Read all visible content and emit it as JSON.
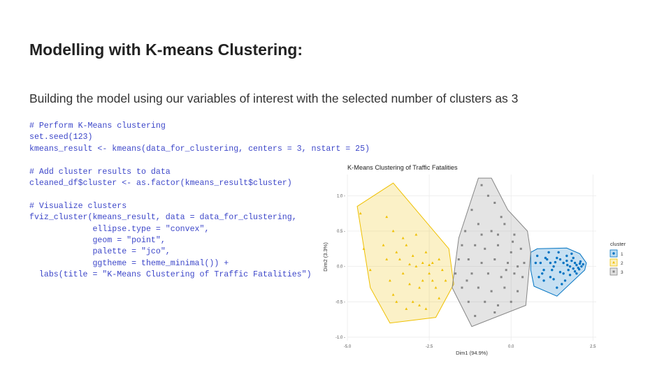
{
  "slide": {
    "title": "Modelling with K-means Clustering:",
    "subtitle": "Building the model using our variables of interest with the selected number of clusters as 3"
  },
  "code_lines": [
    "# Perform K-Means clustering",
    "set.seed(123)",
    "kmeans_result <- kmeans(data_for_clustering, centers = 3, nstart = 25)",
    "",
    "# Add cluster results to data",
    "cleaned_df$cluster <- as.factor(kmeans_result$cluster)",
    "",
    "# Visualize clusters",
    "fviz_cluster(kmeans_result, data = data_for_clustering,",
    "             ellipse.type = \"convex\",",
    "             geom = \"point\",",
    "             palette = \"jco\",",
    "             ggtheme = theme_minimal()) +",
    "  labs(title = \"K-Means Clustering of Traffic Fatalities\")"
  ],
  "colors": {
    "code_text": "#3d47c9",
    "cluster_1": "#0073C2",
    "cluster_2": "#EFC000",
    "cluster_3": "#868686",
    "panel_grid": "#ebebeb"
  },
  "chart_data": {
    "type": "scatter",
    "title": "K-Means Clustering of Traffic Fatalities",
    "xlabel": "Dim1 (94.9%)",
    "ylabel": "Dim2 (3.3%)",
    "xlim": [
      -5.0,
      2.6
    ],
    "ylim": [
      -1.05,
      1.3
    ],
    "x_ticks": [
      -5.0,
      -2.5,
      0.0,
      2.5
    ],
    "x_tick_labels": [
      "-5.0",
      "-2.5",
      "0.0",
      "2.5"
    ],
    "y_ticks": [
      -1.0,
      -0.5,
      0.0,
      0.5,
      1.0
    ],
    "y_tick_labels": [
      "-1.0 -",
      "-0.5 -",
      "0.0 -",
      "0.5 -",
      "1.0 -"
    ],
    "grid": true,
    "legend": {
      "title": "cluster",
      "position": "right",
      "labels": [
        "1",
        "2",
        "3"
      ]
    },
    "series": [
      {
        "name": "1",
        "shape": "circle",
        "hull": [
          [
            0.6,
            0.2
          ],
          [
            0.8,
            0.25
          ],
          [
            1.7,
            0.26
          ],
          [
            2.1,
            0.18
          ],
          [
            2.3,
            0.05
          ],
          [
            2.25,
            -0.05
          ],
          [
            1.4,
            -0.42
          ],
          [
            0.7,
            -0.28
          ],
          [
            0.6,
            -0.05
          ]
        ],
        "points": [
          [
            0.8,
            0.15
          ],
          [
            0.9,
            0.05
          ],
          [
            1.0,
            -0.05
          ],
          [
            1.1,
            0.1
          ],
          [
            1.2,
            -0.15
          ],
          [
            1.3,
            0.0
          ],
          [
            1.4,
            0.12
          ],
          [
            1.5,
            -0.08
          ],
          [
            1.6,
            0.05
          ],
          [
            1.7,
            0.15
          ],
          [
            1.75,
            -0.05
          ],
          [
            1.8,
            0.0
          ],
          [
            1.85,
            0.08
          ],
          [
            1.9,
            -0.03
          ],
          [
            1.95,
            0.05
          ],
          [
            2.0,
            0.02
          ],
          [
            2.05,
            -0.02
          ],
          [
            2.1,
            0.04
          ],
          [
            2.15,
            0.0
          ],
          [
            2.2,
            0.03
          ],
          [
            1.65,
            -0.2
          ],
          [
            1.55,
            -0.25
          ],
          [
            1.4,
            -0.3
          ],
          [
            1.25,
            -0.05
          ],
          [
            1.0,
            -0.2
          ],
          [
            0.85,
            -0.15
          ],
          [
            0.75,
            0.05
          ],
          [
            1.15,
            0.2
          ],
          [
            1.45,
            0.2
          ],
          [
            1.9,
            0.12
          ],
          [
            2.0,
            -0.1
          ],
          [
            1.8,
            -0.12
          ],
          [
            1.7,
            0.08
          ],
          [
            2.12,
            0.07
          ],
          [
            1.35,
            0.06
          ],
          [
            1.05,
            0.12
          ],
          [
            0.95,
            -0.1
          ],
          [
            1.6,
            -0.1
          ],
          [
            1.95,
            -0.07
          ],
          [
            1.85,
            0.18
          ],
          [
            1.5,
            0.1
          ],
          [
            1.3,
            -0.18
          ],
          [
            1.2,
            0.05
          ],
          [
            2.08,
            -0.04
          ],
          [
            1.72,
            0.02
          ]
        ]
      },
      {
        "name": "2",
        "shape": "triangle",
        "hull": [
          [
            -4.7,
            0.85
          ],
          [
            -3.6,
            1.18
          ],
          [
            -1.9,
            0.25
          ],
          [
            -1.75,
            -0.25
          ],
          [
            -2.3,
            -0.72
          ],
          [
            -3.7,
            -0.8
          ],
          [
            -4.3,
            -0.3
          ]
        ],
        "points": [
          [
            -4.6,
            0.75
          ],
          [
            -4.5,
            0.25
          ],
          [
            -4.3,
            -0.05
          ],
          [
            -3.8,
            0.7
          ],
          [
            -3.6,
            0.5
          ],
          [
            -3.5,
            0.2
          ],
          [
            -3.4,
            0.1
          ],
          [
            -3.3,
            -0.1
          ],
          [
            -3.2,
            0.3
          ],
          [
            -3.1,
            -0.25
          ],
          [
            -3.0,
            0.15
          ],
          [
            -2.9,
            0.0
          ],
          [
            -2.8,
            -0.3
          ],
          [
            -2.7,
            0.05
          ],
          [
            -2.6,
            0.2
          ],
          [
            -2.5,
            -0.1
          ],
          [
            -2.4,
            0.05
          ],
          [
            -2.3,
            -0.3
          ],
          [
            -2.2,
            0.1
          ],
          [
            -2.1,
            -0.05
          ],
          [
            -2.0,
            -0.2
          ],
          [
            -3.9,
            0.3
          ],
          [
            -3.7,
            -0.2
          ],
          [
            -3.5,
            -0.5
          ],
          [
            -3.2,
            -0.6
          ],
          [
            -3.0,
            -0.5
          ],
          [
            -2.8,
            -0.55
          ],
          [
            -2.6,
            -0.6
          ],
          [
            -3.3,
            0.4
          ],
          [
            -2.9,
            0.45
          ],
          [
            -3.6,
            -0.4
          ],
          [
            -2.5,
            0.02
          ],
          [
            -3.1,
            0.03
          ],
          [
            -2.2,
            -0.45
          ],
          [
            -3.8,
            0.1
          ],
          [
            -2.7,
            -0.2
          ],
          [
            -2.4,
            -0.2
          ]
        ]
      },
      {
        "name": "3",
        "shape": "square",
        "hull": [
          [
            -1.0,
            1.25
          ],
          [
            -0.6,
            1.25
          ],
          [
            -0.1,
            0.8
          ],
          [
            0.5,
            0.5
          ],
          [
            0.6,
            0.2
          ],
          [
            0.45,
            -0.55
          ],
          [
            -1.2,
            -0.85
          ],
          [
            -1.8,
            -0.3
          ],
          [
            -1.6,
            0.4
          ]
        ],
        "points": [
          [
            -0.9,
            1.15
          ],
          [
            -0.7,
            1.0
          ],
          [
            -0.5,
            0.9
          ],
          [
            -1.2,
            0.8
          ],
          [
            -0.3,
            0.7
          ],
          [
            -1.0,
            0.6
          ],
          [
            -0.2,
            0.6
          ],
          [
            -1.4,
            0.5
          ],
          [
            -0.6,
            0.5
          ],
          [
            0.1,
            0.45
          ],
          [
            -1.5,
            0.3
          ],
          [
            -1.1,
            0.3
          ],
          [
            -0.8,
            0.25
          ],
          [
            -0.4,
            0.3
          ],
          [
            0.0,
            0.2
          ],
          [
            0.3,
            0.25
          ],
          [
            -1.6,
            0.1
          ],
          [
            -1.3,
            0.1
          ],
          [
            -0.9,
            0.05
          ],
          [
            -0.5,
            0.1
          ],
          [
            -0.1,
            0.05
          ],
          [
            0.2,
            0.0
          ],
          [
            0.4,
            0.05
          ],
          [
            -1.7,
            -0.1
          ],
          [
            -1.2,
            -0.1
          ],
          [
            -0.7,
            -0.1
          ],
          [
            -0.3,
            -0.15
          ],
          [
            0.1,
            -0.1
          ],
          [
            0.35,
            -0.15
          ],
          [
            -1.5,
            -0.3
          ],
          [
            -1.0,
            -0.3
          ],
          [
            -0.6,
            -0.35
          ],
          [
            -0.2,
            -0.3
          ],
          [
            0.2,
            -0.35
          ],
          [
            -1.3,
            -0.5
          ],
          [
            -0.8,
            -0.5
          ],
          [
            -0.4,
            -0.55
          ],
          [
            0.0,
            -0.5
          ],
          [
            -1.1,
            -0.7
          ],
          [
            -0.5,
            -0.65
          ],
          [
            -0.9,
            0.45
          ],
          [
            -0.4,
            0.45
          ],
          [
            0.05,
            0.35
          ],
          [
            -1.35,
            -0.2
          ],
          [
            -0.15,
            -0.05
          ]
        ]
      }
    ]
  }
}
